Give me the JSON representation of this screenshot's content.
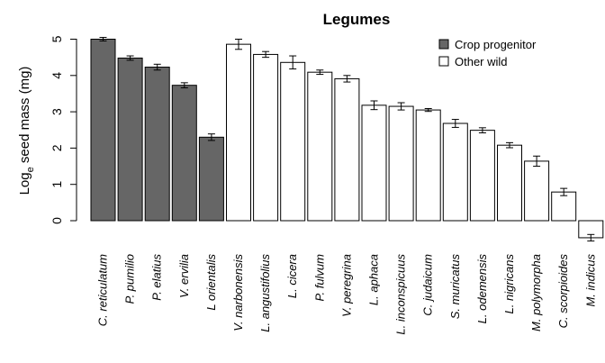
{
  "chart_data": {
    "type": "bar",
    "title": "Legumes",
    "ylabel": "Loge seed mass (mg)",
    "ylabel_parts": [
      "Log",
      "e",
      " seed mass (mg)"
    ],
    "ylim": [
      -0.5,
      5.2
    ],
    "yticks": [
      0,
      1,
      2,
      3,
      4,
      5
    ],
    "legend": [
      {
        "label": "Crop progenitor",
        "color": "#666666"
      },
      {
        "label": "Other wild",
        "color": "#ffffff"
      }
    ],
    "legend_position": "top-right",
    "categories": [
      "C. reticulatum",
      "P. pumilio",
      "P. elatius",
      "V. ervilia",
      "L orientalis",
      "V. narbonensis",
      "L. angustifolius",
      "L. cicera",
      "P. fulvum",
      "V. peregrina",
      "L. aphaca",
      "L. inconspicuus",
      "C. judaicum",
      "S. muricatus",
      "L. odemensis",
      "L. nigricans",
      "M. polymorpha",
      "C. scorpioides",
      "M. indicus"
    ],
    "values": [
      5.0,
      4.48,
      4.23,
      3.73,
      2.3,
      4.86,
      4.58,
      4.36,
      4.09,
      3.91,
      3.18,
      3.15,
      3.05,
      2.68,
      2.49,
      2.08,
      1.64,
      0.79,
      -0.47
    ],
    "errors": [
      0.05,
      0.06,
      0.08,
      0.07,
      0.09,
      0.14,
      0.08,
      0.18,
      0.06,
      0.09,
      0.12,
      0.1,
      0.04,
      0.11,
      0.07,
      0.07,
      0.14,
      0.1,
      0.09
    ],
    "groups": [
      "Crop progenitor",
      "Crop progenitor",
      "Crop progenitor",
      "Crop progenitor",
      "Crop progenitor",
      "Other wild",
      "Other wild",
      "Other wild",
      "Other wild",
      "Other wild",
      "Other wild",
      "Other wild",
      "Other wild",
      "Other wild",
      "Other wild",
      "Other wild",
      "Other wild",
      "Other wild",
      "Other wild"
    ]
  }
}
